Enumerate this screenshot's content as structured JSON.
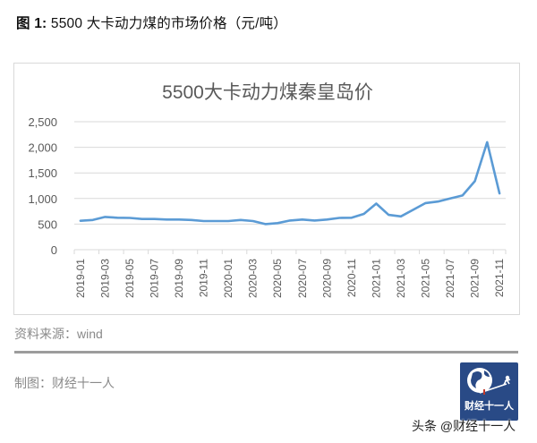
{
  "figure": {
    "label": "图 1:",
    "title": "5500 大卡动力煤的市场价格（元/吨）"
  },
  "chart_data": {
    "type": "line",
    "title": "5500大卡动力煤秦皇岛价",
    "xlabel": "",
    "ylabel": "",
    "ylim": [
      0,
      2500
    ],
    "yticks": [
      0,
      500,
      1000,
      1500,
      2000,
      2500
    ],
    "ytick_labels": [
      "0",
      "500",
      "1,000",
      "1,500",
      "2,000",
      "2,500"
    ],
    "grid": true,
    "legend": null,
    "x": [
      "2019-01",
      "2019-02",
      "2019-03",
      "2019-04",
      "2019-05",
      "2019-06",
      "2019-07",
      "2019-08",
      "2019-09",
      "2019-10",
      "2019-11",
      "2019-12",
      "2020-01",
      "2020-02",
      "2020-03",
      "2020-04",
      "2020-05",
      "2020-06",
      "2020-07",
      "2020-08",
      "2020-09",
      "2020-10",
      "2020-11",
      "2020-12",
      "2021-01",
      "2021-02",
      "2021-03",
      "2021-04",
      "2021-05",
      "2021-06",
      "2021-07",
      "2021-08",
      "2021-09",
      "2021-10",
      "2021-11"
    ],
    "xtick_labels": [
      "2019-01",
      "2019-03",
      "2019-05",
      "2019-07",
      "2019-09",
      "2019-11",
      "2020-01",
      "2020-03",
      "2020-05",
      "2020-07",
      "2020-09",
      "2020-11",
      "2021-01",
      "2021-03",
      "2021-05",
      "2021-07",
      "2021-09",
      "2021-11"
    ],
    "series": [
      {
        "name": "5500大卡动力煤秦皇岛价",
        "color": "#5b9bd5",
        "values": [
          565,
          580,
          640,
          625,
          620,
          600,
          600,
          590,
          590,
          580,
          560,
          560,
          560,
          580,
          560,
          500,
          520,
          570,
          590,
          570,
          590,
          620,
          625,
          700,
          900,
          680,
          650,
          780,
          910,
          940,
          1000,
          1060,
          1340,
          2100,
          1100
        ]
      }
    ]
  },
  "footer": {
    "source": "资料来源：wind",
    "credit": "制图：财经十一人",
    "logo_text": "财经十一人",
    "watermark": "头条 @财经十一人"
  }
}
